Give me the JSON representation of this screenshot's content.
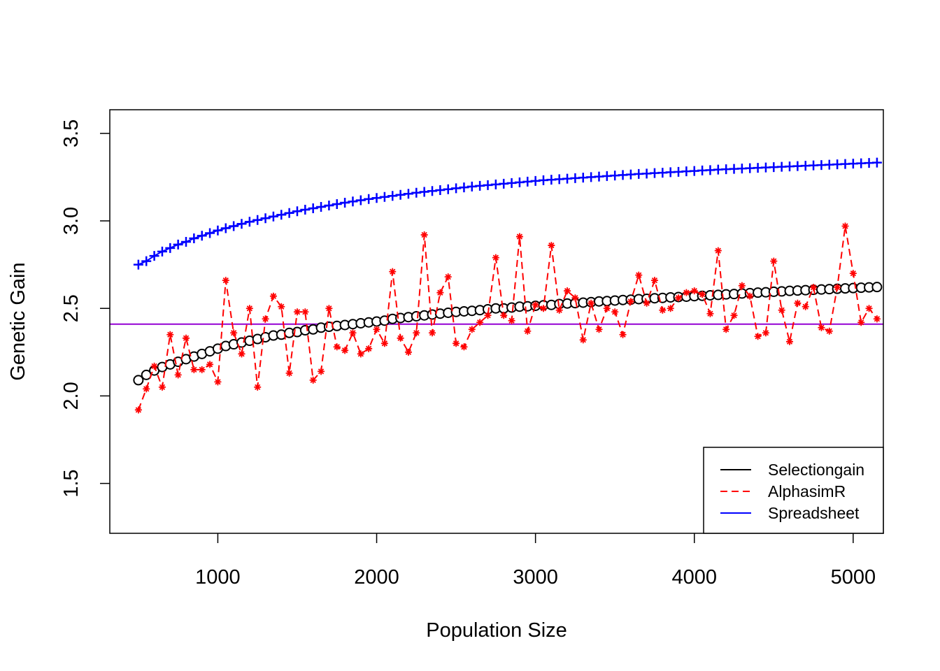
{
  "chart_data": {
    "type": "line",
    "title": "",
    "xlabel": "Population Size",
    "ylabel": "Genetic Gain",
    "xlim": [
      320,
      5190
    ],
    "ylim": [
      1.215,
      3.635
    ],
    "x_ticks": [
      1000,
      2000,
      3000,
      4000,
      5000
    ],
    "x_tick_labels": [
      "1000",
      "2000",
      "3000",
      "4000",
      "5000"
    ],
    "y_ticks": [
      1.5,
      2.0,
      2.5,
      3.0,
      3.5
    ],
    "y_tick_labels": [
      "1.5",
      "2.0",
      "2.5",
      "3.0",
      "3.5"
    ],
    "legend_position": "bottom-right",
    "grid": false,
    "x": [
      500,
      550,
      600,
      650,
      700,
      750,
      800,
      850,
      900,
      950,
      1000,
      1050,
      1100,
      1150,
      1200,
      1250,
      1300,
      1350,
      1400,
      1450,
      1500,
      1550,
      1600,
      1650,
      1700,
      1750,
      1800,
      1850,
      1900,
      1950,
      2000,
      2050,
      2100,
      2150,
      2200,
      2250,
      2300,
      2350,
      2400,
      2450,
      2500,
      2550,
      2600,
      2650,
      2700,
      2750,
      2800,
      2850,
      2900,
      2950,
      3000,
      3050,
      3100,
      3150,
      3200,
      3250,
      3300,
      3350,
      3400,
      3450,
      3500,
      3550,
      3600,
      3650,
      3700,
      3750,
      3800,
      3850,
      3900,
      3950,
      4000,
      4050,
      4100,
      4150,
      4200,
      4250,
      4300,
      4350,
      4400,
      4450,
      4500,
      4550,
      4600,
      4650,
      4700,
      4750,
      4800,
      4850,
      4900,
      4950,
      5000,
      5050,
      5100,
      5150
    ],
    "series": [
      {
        "name": "Selectiongain",
        "color": "#000000",
        "line_style": "solid",
        "marker": "open-circle",
        "values": [
          2.09,
          2.12,
          2.145,
          2.165,
          2.18,
          2.195,
          2.21,
          2.225,
          2.24,
          2.255,
          2.27,
          2.285,
          2.295,
          2.305,
          2.315,
          2.325,
          2.335,
          2.345,
          2.35,
          2.36,
          2.365,
          2.375,
          2.38,
          2.39,
          2.395,
          2.4,
          2.405,
          2.41,
          2.415,
          2.42,
          2.425,
          2.43,
          2.44,
          2.445,
          2.45,
          2.455,
          2.46,
          2.465,
          2.47,
          2.475,
          2.48,
          2.483,
          2.486,
          2.49,
          2.495,
          2.5,
          2.5,
          2.505,
          2.51,
          2.512,
          2.515,
          2.518,
          2.52,
          2.525,
          2.528,
          2.53,
          2.533,
          2.536,
          2.54,
          2.542,
          2.545,
          2.548,
          2.55,
          2.553,
          2.555,
          2.558,
          2.56,
          2.563,
          2.565,
          2.567,
          2.57,
          2.572,
          2.575,
          2.577,
          2.58,
          2.582,
          2.585,
          2.587,
          2.59,
          2.592,
          2.595,
          2.597,
          2.6,
          2.602,
          2.604,
          2.606,
          2.608,
          2.61,
          2.612,
          2.614,
          2.616,
          2.618,
          2.62,
          2.622
        ]
      },
      {
        "name": "AlphasimR",
        "color": "#ff0000",
        "line_style": "dashed",
        "marker": "asterisk",
        "values": [
          1.92,
          2.04,
          2.17,
          2.05,
          2.35,
          2.12,
          2.33,
          2.15,
          2.15,
          2.18,
          2.08,
          2.66,
          2.36,
          2.24,
          2.5,
          2.05,
          2.44,
          2.57,
          2.51,
          2.13,
          2.48,
          2.48,
          2.09,
          2.14,
          2.5,
          2.28,
          2.26,
          2.36,
          2.24,
          2.27,
          2.38,
          2.3,
          2.71,
          2.33,
          2.25,
          2.36,
          2.92,
          2.36,
          2.59,
          2.68,
          2.3,
          2.28,
          2.38,
          2.42,
          2.46,
          2.79,
          2.46,
          2.43,
          2.91,
          2.37,
          2.52,
          2.5,
          2.86,
          2.49,
          2.6,
          2.56,
          2.32,
          2.53,
          2.38,
          2.5,
          2.48,
          2.35,
          2.54,
          2.69,
          2.53,
          2.66,
          2.49,
          2.5,
          2.56,
          2.59,
          2.6,
          2.58,
          2.47,
          2.83,
          2.38,
          2.46,
          2.63,
          2.57,
          2.34,
          2.36,
          2.77,
          2.49,
          2.31,
          2.53,
          2.51,
          2.62,
          2.39,
          2.37,
          2.62,
          2.97,
          2.7,
          2.42,
          2.5,
          2.44
        ]
      },
      {
        "name": "Spreadsheet",
        "color": "#0000ff",
        "line_style": "solid",
        "marker": "plus",
        "values": [
          2.75,
          2.77,
          2.8,
          2.825,
          2.845,
          2.865,
          2.88,
          2.9,
          2.915,
          2.93,
          2.945,
          2.958,
          2.97,
          2.983,
          2.995,
          3.005,
          3.015,
          3.025,
          3.035,
          3.045,
          3.055,
          3.064,
          3.072,
          3.08,
          3.088,
          3.096,
          3.104,
          3.111,
          3.118,
          3.125,
          3.131,
          3.137,
          3.143,
          3.149,
          3.155,
          3.161,
          3.166,
          3.171,
          3.176,
          3.181,
          3.186,
          3.191,
          3.196,
          3.2,
          3.204,
          3.208,
          3.212,
          3.216,
          3.22,
          3.224,
          3.228,
          3.232,
          3.235,
          3.238,
          3.241,
          3.244,
          3.247,
          3.25,
          3.253,
          3.256,
          3.259,
          3.262,
          3.265,
          3.268,
          3.27,
          3.273,
          3.275,
          3.278,
          3.28,
          3.283,
          3.285,
          3.288,
          3.29,
          3.293,
          3.295,
          3.297,
          3.299,
          3.301,
          3.303,
          3.305,
          3.307,
          3.309,
          3.311,
          3.313,
          3.315,
          3.317,
          3.319,
          3.321,
          3.323,
          3.325,
          3.327,
          3.329,
          3.331,
          3.333
        ]
      }
    ],
    "reference_line": {
      "y": 2.41,
      "color": "#9400d3"
    }
  }
}
